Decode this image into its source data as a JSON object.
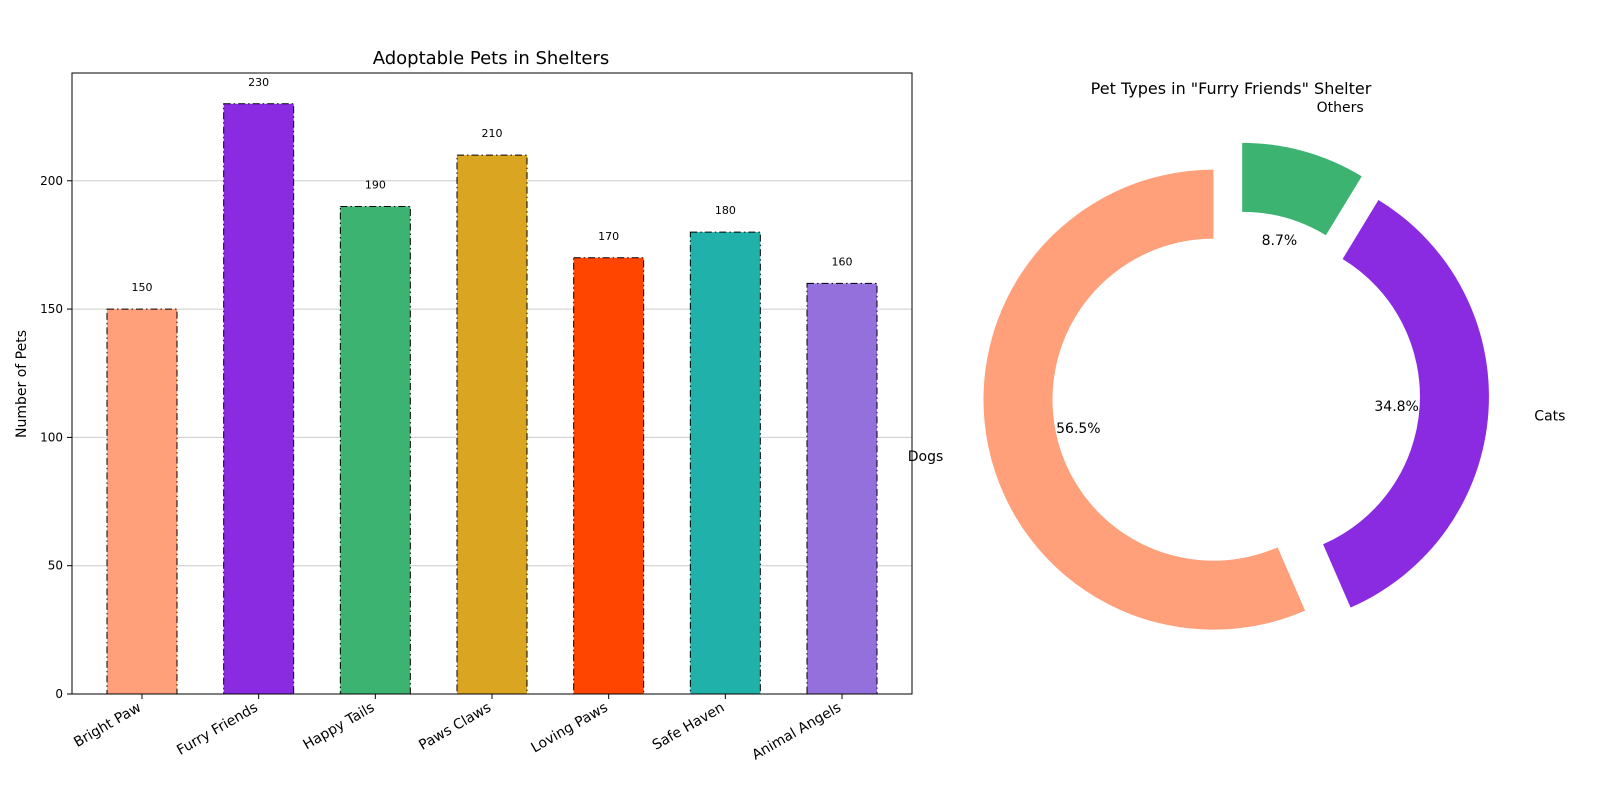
{
  "chart_data": [
    {
      "type": "bar",
      "title": "Adoptable Pets in Shelters",
      "xlabel": "",
      "ylabel": "Number of Pets",
      "categories": [
        "Bright Paw",
        "Furry Friends",
        "Happy Tails",
        "Paws Claws",
        "Loving Paws",
        "Safe Haven",
        "Animal Angels"
      ],
      "values": [
        150,
        230,
        190,
        210,
        170,
        180,
        160
      ],
      "data_labels": [
        "150",
        "230",
        "190",
        "210",
        "170",
        "180",
        "160"
      ],
      "colors": [
        "#FFA07A",
        "#8A2BE2",
        "#3CB371",
        "#DAA520",
        "#FF4500",
        "#20B2AA",
        "#9370DB"
      ],
      "ylim": [
        0,
        242
      ],
      "yticks": [
        0,
        50,
        100,
        150,
        200
      ],
      "ytick_labels": [
        "0",
        "50",
        "100",
        "150",
        "200"
      ],
      "grid": "y",
      "bar_edge": "dash-dot black"
    },
    {
      "type": "pie",
      "style": "donut",
      "title": "Pet Types in \"Furry Friends\" Shelter",
      "labels": [
        "Dogs",
        "Cats",
        "Others"
      ],
      "values": [
        130,
        80,
        20
      ],
      "percent_labels": [
        "56.5%",
        "34.8%",
        "8.7%"
      ],
      "colors": [
        "#FFA07A",
        "#8A2BE2",
        "#3CB371"
      ],
      "start_angle_deg": 90,
      "direction": "counterclockwise",
      "exploded": true
    }
  ]
}
